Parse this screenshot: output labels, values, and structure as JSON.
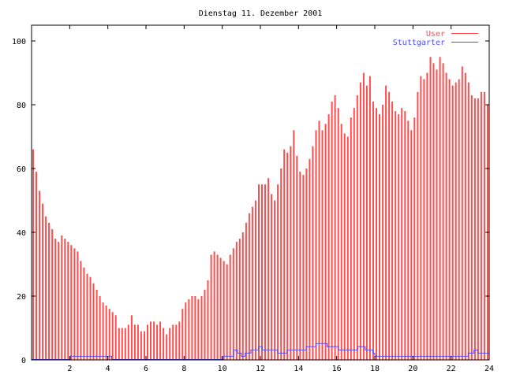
{
  "chart_data": {
    "type": "bar",
    "title": "Dienstag 11. Dezember 2001",
    "xlabel": "",
    "ylabel": "",
    "xlim": [
      0,
      24
    ],
    "ylim": [
      0,
      105
    ],
    "x_ticks": [
      2,
      4,
      6,
      8,
      10,
      12,
      14,
      16,
      18,
      20,
      22,
      24
    ],
    "y_ticks": [
      0,
      20,
      40,
      60,
      80,
      100
    ],
    "grid": false,
    "legend_placement": "top-right",
    "x_step_hours": 0.1666667,
    "series": [
      {
        "name": "User",
        "style": "impulses",
        "color": "#ff4d4d",
        "values": [
          66,
          59,
          53,
          49,
          45,
          43,
          41,
          38,
          37,
          39,
          38,
          37,
          36,
          35,
          34,
          31,
          29,
          27,
          26,
          24,
          22,
          20,
          18,
          17,
          16,
          15,
          14,
          10,
          10,
          10,
          11,
          14,
          11,
          11,
          9,
          9,
          11,
          12,
          12,
          11,
          12,
          10,
          8,
          10,
          11,
          11,
          12,
          16,
          18,
          19,
          20,
          20,
          19,
          20,
          22,
          25,
          33,
          34,
          33,
          32,
          31,
          30,
          33,
          35,
          37,
          38,
          40,
          43,
          46,
          48,
          50,
          55,
          55,
          55,
          57,
          52,
          50,
          55,
          60,
          66,
          65,
          67,
          72,
          64,
          59,
          58,
          60,
          63,
          67,
          72,
          75,
          72,
          74,
          77,
          81,
          83,
          79,
          74,
          71,
          70,
          76,
          79,
          83,
          87,
          90,
          86,
          89,
          81,
          79,
          77,
          80,
          86,
          84,
          81,
          78,
          77,
          79,
          78,
          75,
          72,
          76,
          84,
          89,
          88,
          90,
          95,
          93,
          91,
          95,
          93,
          90,
          88,
          86,
          87,
          88,
          92,
          90,
          87,
          83,
          82,
          82,
          84,
          84,
          80
        ]
      },
      {
        "name": "Stuttgarter",
        "style": "steps",
        "color": "#4d4dff",
        "points": [
          [
            0,
            0
          ],
          [
            2,
            0
          ],
          [
            2.05,
            1
          ],
          [
            4.1,
            1
          ],
          [
            4.2,
            0
          ],
          [
            10,
            0
          ],
          [
            10.05,
            1
          ],
          [
            10.5,
            1
          ],
          [
            10.6,
            3
          ],
          [
            10.8,
            2
          ],
          [
            11,
            1
          ],
          [
            11.2,
            2
          ],
          [
            11.5,
            3
          ],
          [
            11.9,
            4
          ],
          [
            12.1,
            3
          ],
          [
            12.8,
            3
          ],
          [
            12.9,
            2
          ],
          [
            13.3,
            2
          ],
          [
            13.4,
            3
          ],
          [
            14.3,
            3
          ],
          [
            14.4,
            4
          ],
          [
            14.8,
            4
          ],
          [
            14.9,
            5
          ],
          [
            15.1,
            5
          ],
          [
            15.2,
            5
          ],
          [
            15.5,
            4
          ],
          [
            16,
            4
          ],
          [
            16.1,
            3
          ],
          [
            17,
            3
          ],
          [
            17.1,
            4
          ],
          [
            17.4,
            4
          ],
          [
            17.5,
            3
          ],
          [
            17.8,
            3
          ],
          [
            17.9,
            2
          ],
          [
            18,
            1
          ],
          [
            22.8,
            1
          ],
          [
            22.9,
            2
          ],
          [
            23.1,
            2
          ],
          [
            23.2,
            3
          ],
          [
            23.4,
            2
          ],
          [
            24,
            2
          ]
        ]
      }
    ]
  }
}
